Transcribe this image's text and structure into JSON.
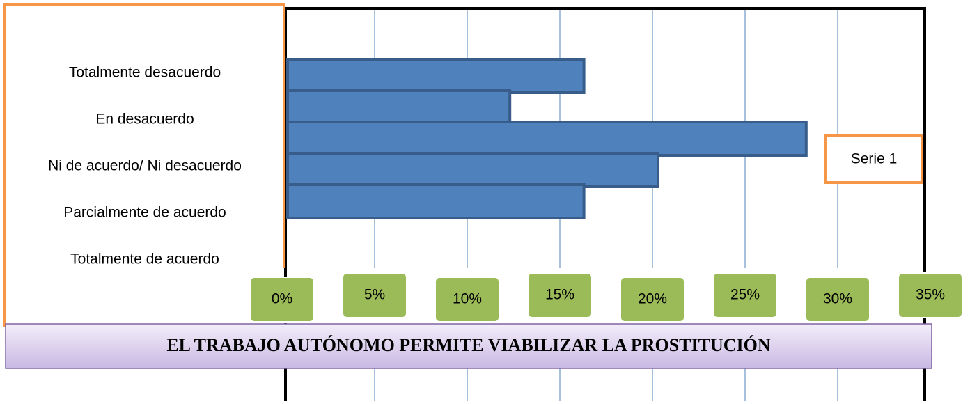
{
  "chart_data": {
    "type": "bar",
    "orientation": "horizontal",
    "title": "EL TRABAJO AUTÓNOMO PERMITE VIABILIZAR LA PROSTITUCIÓN",
    "categories": [
      "Totalmente desacuerdo",
      "En desacuerdo",
      "Ni de acuerdo/ Ni desacuerdo",
      "Parcialmente de acuerdo",
      "Totalmente de acuerdo"
    ],
    "series": [
      {
        "name": "Serie 1",
        "color": "#4f81bd",
        "values": [
          16,
          12,
          28,
          20,
          16
        ]
      }
    ],
    "xlim": [
      0,
      35
    ],
    "xticks": [
      {
        "value": 0,
        "label": "0%"
      },
      {
        "value": 5,
        "label": "5%"
      },
      {
        "value": 10,
        "label": "10%"
      },
      {
        "value": 15,
        "label": "15%"
      },
      {
        "value": 20,
        "label": "20%"
      },
      {
        "value": 25,
        "label": "25%"
      },
      {
        "value": 30,
        "label": "30%"
      },
      {
        "value": 35,
        "label": "35%"
      }
    ],
    "grid": true,
    "legend": "right"
  }
}
